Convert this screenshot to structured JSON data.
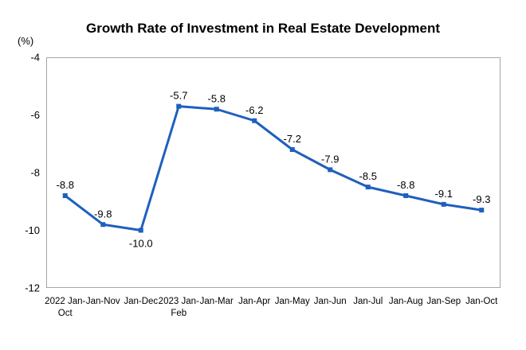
{
  "chart_data": {
    "type": "line",
    "title": "Growth Rate of Investment in Real Estate Development",
    "unit": "(%)",
    "xlabel": "",
    "ylabel": "(%)",
    "ylim": [
      -12,
      -4
    ],
    "yticks": [
      -4,
      -6,
      -8,
      -10,
      -12
    ],
    "grid": false,
    "categories": [
      [
        "2022 Jan-",
        "Oct"
      ],
      [
        "Jan-Nov"
      ],
      [
        "Jan-Dec"
      ],
      [
        "2023 Jan-",
        "Feb"
      ],
      [
        "Jan-Mar"
      ],
      [
        "Jan-Apr"
      ],
      [
        "Jan-May"
      ],
      [
        "Jan-Jun"
      ],
      [
        "Jan-Jul"
      ],
      [
        "Jan-Aug"
      ],
      [
        "Jan-Sep"
      ],
      [
        "Jan-Oct"
      ]
    ],
    "series": [
      {
        "name": "Growth Rate",
        "color": "#1f5fbf",
        "values": [
          -8.8,
          -9.8,
          -10.0,
          -5.7,
          -5.8,
          -6.2,
          -7.2,
          -7.9,
          -8.5,
          -8.8,
          -9.1,
          -9.3
        ],
        "labels": [
          "-8.8",
          "-9.8",
          "-10.0",
          "-5.7",
          "-5.8",
          "-6.2",
          "-7.2",
          "-7.9",
          "-8.5",
          "-8.8",
          "-9.1",
          "-9.3"
        ]
      }
    ]
  }
}
